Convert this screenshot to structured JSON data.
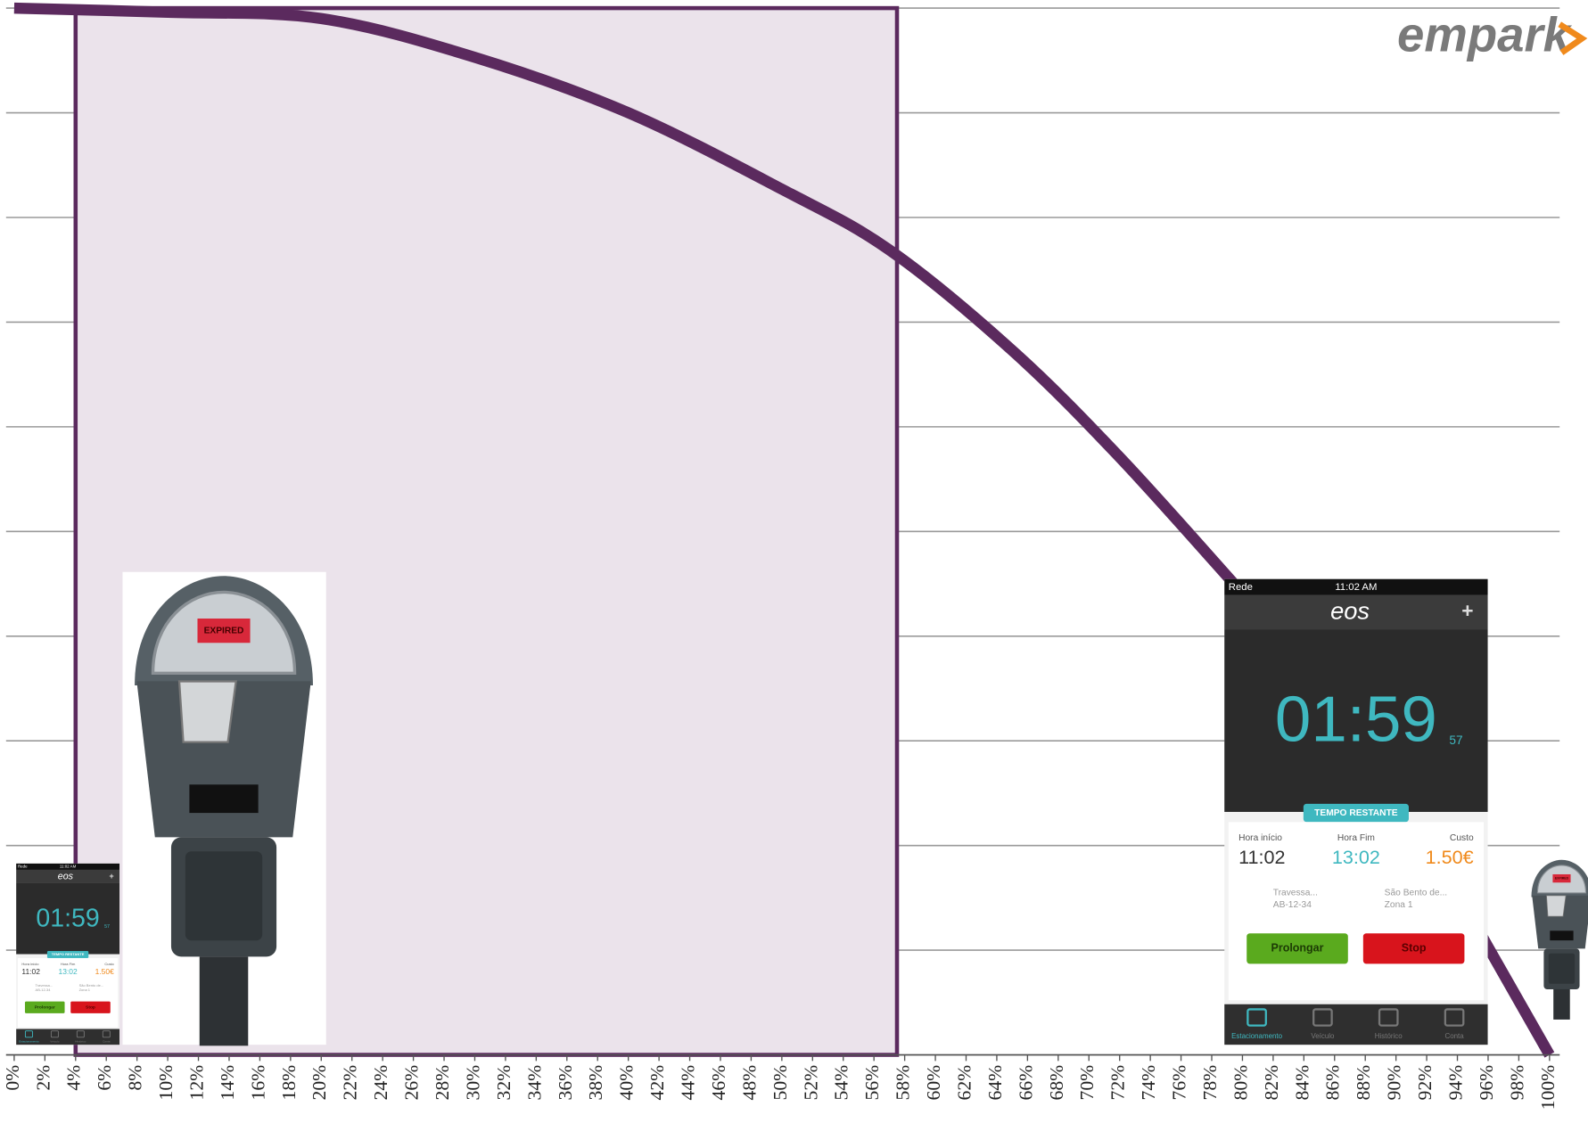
{
  "chart_data": {
    "type": "line",
    "x": [
      0,
      10,
      20,
      30,
      40,
      50,
      57,
      65,
      72,
      80,
      88,
      96,
      100
    ],
    "series": [
      {
        "color": "#5b2a5e",
        "values": [
          10,
          9.96,
          9.9,
          9.53,
          9.0,
          8.27,
          7.69,
          6.73,
          5.71,
          4.41,
          3.1,
          1.03,
          0
        ]
      }
    ],
    "xlim": [
      0,
      100
    ],
    "xticks": [
      {
        "value": 0,
        "label": "0%"
      },
      {
        "value": 2,
        "label": "2%"
      },
      {
        "value": 4,
        "label": "4%"
      },
      {
        "value": 6,
        "label": "6%"
      },
      {
        "value": 8,
        "label": "8%"
      },
      {
        "value": 10,
        "label": "10%"
      },
      {
        "value": 12,
        "label": "12%"
      },
      {
        "value": 14,
        "label": "14%"
      },
      {
        "value": 16,
        "label": "16%"
      },
      {
        "value": 18,
        "label": "18%"
      },
      {
        "value": 20,
        "label": "20%"
      },
      {
        "value": 22,
        "label": "22%"
      },
      {
        "value": 24,
        "label": "24%"
      },
      {
        "value": 26,
        "label": "26%"
      },
      {
        "value": 28,
        "label": "28%"
      },
      {
        "value": 30,
        "label": "30%"
      },
      {
        "value": 32,
        "label": "32%"
      },
      {
        "value": 34,
        "label": "34%"
      },
      {
        "value": 36,
        "label": "36%"
      },
      {
        "value": 38,
        "label": "38%"
      },
      {
        "value": 40,
        "label": "40%"
      },
      {
        "value": 42,
        "label": "42%"
      },
      {
        "value": 44,
        "label": "44%"
      },
      {
        "value": 46,
        "label": "46%"
      },
      {
        "value": 48,
        "label": "48%"
      },
      {
        "value": 50,
        "label": "50%"
      },
      {
        "value": 52,
        "label": "52%"
      },
      {
        "value": 54,
        "label": "54%"
      },
      {
        "value": 56,
        "label": "56%"
      },
      {
        "value": 58,
        "label": "58%"
      },
      {
        "value": 60,
        "label": "60%"
      },
      {
        "value": 62,
        "label": "62%"
      },
      {
        "value": 64,
        "label": "64%"
      },
      {
        "value": 66,
        "label": "66%"
      },
      {
        "value": 68,
        "label": "68%"
      },
      {
        "value": 70,
        "label": "70%"
      },
      {
        "value": 72,
        "label": "72%"
      },
      {
        "value": 74,
        "label": "74%"
      },
      {
        "value": 76,
        "label": "76%"
      },
      {
        "value": 78,
        "label": "78%"
      },
      {
        "value": 80,
        "label": "80%"
      },
      {
        "value": 82,
        "label": "82%"
      },
      {
        "value": 84,
        "label": "84%"
      },
      {
        "value": 86,
        "label": "86%"
      },
      {
        "value": 88,
        "label": "88%"
      },
      {
        "value": 90,
        "label": "90%"
      },
      {
        "value": 92,
        "label": "92%"
      },
      {
        "value": 94,
        "label": "94%"
      },
      {
        "value": 96,
        "label": "96%"
      },
      {
        "value": 98,
        "label": "98%"
      },
      {
        "value": 100,
        "label": "100%"
      }
    ],
    "ylim": [
      0,
      10
    ],
    "yticks": [
      0,
      1,
      2,
      3,
      4,
      5,
      6,
      7,
      8,
      9,
      10
    ],
    "grid": true,
    "highlight": {
      "x": [
        4,
        57.5
      ],
      "color": "#5b2a5e",
      "fill": "#ebe3eb"
    }
  },
  "logo": "empark",
  "meter": {
    "display": "EXPIRED"
  },
  "phone": {
    "status": "Rede",
    "time": "11:02 AM",
    "app": "eos",
    "plus": "+",
    "timer": "01:59",
    "seconds": "57",
    "banner": "TEMPO RESTANTE",
    "labels": [
      "Hora início",
      "Hora Fim",
      "Custo"
    ],
    "values": [
      "11:02",
      "13:02",
      "1.50€"
    ],
    "vehicle": [
      "Travessa...",
      "AB-12-34"
    ],
    "zone": [
      "São Bento de...",
      "Zona 1"
    ],
    "buttons": [
      "Prolongar",
      "Stop"
    ],
    "tabs": [
      "Estacionamento",
      "Veículo",
      "Histórico",
      "Conta"
    ]
  }
}
